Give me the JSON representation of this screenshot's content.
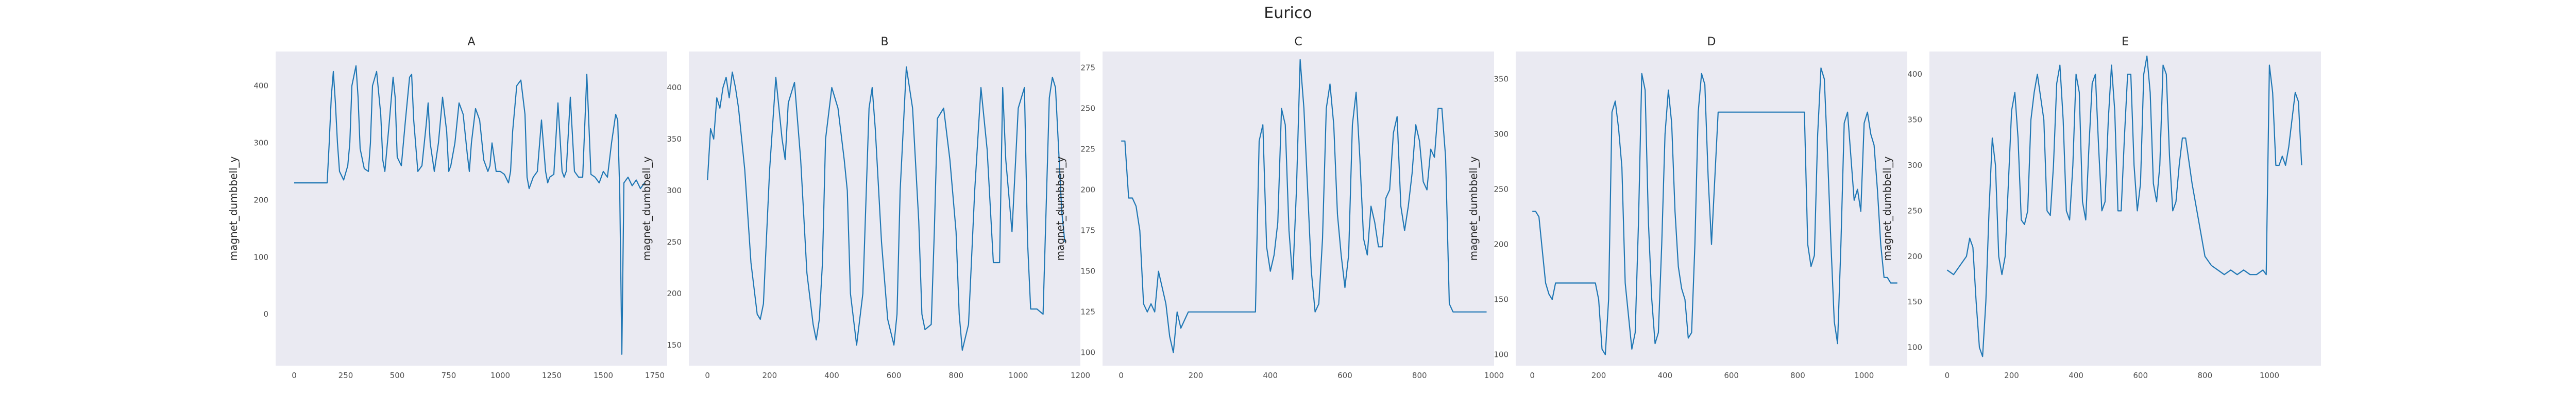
{
  "title": "Eurico",
  "chart_data": [
    {
      "type": "line",
      "title": "A",
      "ylabel": "magnet_dumbbell_y",
      "xlim": [
        -90,
        1810
      ],
      "ylim": [
        -90,
        460
      ],
      "xticks": [
        0,
        250,
        500,
        750,
        1000,
        1250,
        1500,
        1750
      ],
      "yticks": [
        0,
        100,
        200,
        300,
        400
      ],
      "grid": false,
      "series": [
        {
          "color": "#1f77b4",
          "x": [
            0,
            140,
            160,
            170,
            180,
            190,
            200,
            210,
            220,
            240,
            260,
            270,
            280,
            300,
            310,
            320,
            340,
            360,
            370,
            380,
            400,
            420,
            430,
            440,
            460,
            480,
            490,
            500,
            520,
            540,
            560,
            570,
            580,
            600,
            620,
            640,
            650,
            660,
            680,
            700,
            720,
            740,
            750,
            760,
            780,
            800,
            820,
            840,
            850,
            860,
            880,
            900,
            920,
            940,
            950,
            960,
            980,
            1000,
            1020,
            1040,
            1050,
            1060,
            1080,
            1100,
            1120,
            1130,
            1140,
            1160,
            1180,
            1200,
            1220,
            1230,
            1240,
            1260,
            1280,
            1300,
            1310,
            1320,
            1340,
            1360,
            1380,
            1400,
            1420,
            1440,
            1460,
            1480,
            1500,
            1520,
            1540,
            1560,
            1570,
            1580,
            1590,
            1600,
            1620,
            1640,
            1660,
            1680,
            1700
          ],
          "y": [
            230,
            230,
            230,
            300,
            380,
            425,
            370,
            300,
            250,
            235,
            260,
            300,
            400,
            435,
            380,
            290,
            255,
            250,
            300,
            400,
            425,
            350,
            270,
            250,
            330,
            415,
            380,
            275,
            260,
            340,
            415,
            420,
            340,
            250,
            260,
            330,
            370,
            300,
            250,
            300,
            380,
            320,
            250,
            260,
            300,
            370,
            350,
            280,
            250,
            300,
            360,
            340,
            270,
            250,
            260,
            300,
            250,
            250,
            245,
            230,
            250,
            320,
            400,
            410,
            350,
            240,
            220,
            240,
            250,
            340,
            250,
            230,
            240,
            245,
            370,
            250,
            240,
            250,
            380,
            250,
            240,
            240,
            420,
            245,
            240,
            230,
            250,
            240,
            300,
            350,
            340,
            210,
            -70,
            230,
            240,
            225,
            235,
            220,
            230
          ]
        }
      ]
    },
    {
      "type": "line",
      "title": "B",
      "ylabel": "magnet_dumbbell_y",
      "xlim": [
        -60,
        1200
      ],
      "ylim": [
        130,
        435
      ],
      "xticks": [
        0,
        200,
        400,
        600,
        800,
        1000,
        1200
      ],
      "yticks": [
        150,
        200,
        250,
        300,
        350,
        400
      ],
      "grid": false,
      "series": [
        {
          "color": "#1f77b4",
          "x": [
            0,
            10,
            20,
            30,
            40,
            50,
            60,
            70,
            80,
            90,
            100,
            120,
            140,
            160,
            170,
            180,
            200,
            220,
            240,
            250,
            260,
            280,
            300,
            320,
            340,
            350,
            360,
            370,
            380,
            400,
            420,
            440,
            450,
            460,
            480,
            500,
            520,
            530,
            540,
            560,
            580,
            600,
            610,
            620,
            640,
            660,
            680,
            690,
            700,
            720,
            730,
            740,
            760,
            780,
            800,
            810,
            820,
            840,
            860,
            880,
            900,
            920,
            940,
            950,
            960,
            980,
            1000,
            1020,
            1030,
            1040,
            1060,
            1080,
            1100,
            1110,
            1120,
            1130,
            1140,
            1150
          ],
          "y": [
            310,
            360,
            350,
            390,
            380,
            400,
            410,
            390,
            415,
            400,
            380,
            320,
            230,
            180,
            175,
            190,
            320,
            410,
            350,
            330,
            385,
            405,
            330,
            220,
            170,
            155,
            175,
            230,
            350,
            400,
            380,
            330,
            300,
            200,
            150,
            200,
            380,
            400,
            360,
            250,
            175,
            150,
            180,
            300,
            420,
            380,
            270,
            180,
            165,
            170,
            260,
            370,
            380,
            330,
            260,
            180,
            145,
            170,
            300,
            400,
            340,
            230,
            230,
            400,
            330,
            260,
            380,
            400,
            250,
            185,
            185,
            180,
            390,
            410,
            400,
            340,
            280,
            250
          ]
        }
      ]
    },
    {
      "type": "line",
      "title": "C",
      "ylabel": "magnet_dumbbell_y",
      "xlim": [
        -50,
        1000
      ],
      "ylim": [
        92,
        285
      ],
      "xticks": [
        0,
        200,
        400,
        600,
        800,
        1000
      ],
      "yticks": [
        100,
        125,
        150,
        175,
        200,
        225,
        250,
        275
      ],
      "grid": false,
      "series": [
        {
          "color": "#1f77b4",
          "x": [
            0,
            10,
            20,
            30,
            40,
            50,
            60,
            70,
            80,
            90,
            100,
            110,
            120,
            130,
            140,
            150,
            160,
            170,
            180,
            190,
            200,
            250,
            300,
            340,
            360,
            370,
            380,
            390,
            400,
            410,
            420,
            430,
            440,
            450,
            460,
            470,
            480,
            490,
            500,
            510,
            520,
            530,
            540,
            550,
            560,
            570,
            580,
            590,
            600,
            610,
            620,
            630,
            640,
            650,
            660,
            670,
            680,
            690,
            700,
            710,
            720,
            730,
            740,
            750,
            760,
            770,
            780,
            790,
            800,
            810,
            820,
            830,
            840,
            850,
            860,
            870,
            880,
            890,
            900,
            910,
            920,
            930,
            940,
            950,
            960,
            970,
            980
          ],
          "y": [
            230,
            230,
            195,
            195,
            190,
            175,
            130,
            125,
            130,
            125,
            150,
            140,
            130,
            110,
            100,
            125,
            115,
            120,
            125,
            125,
            125,
            125,
            125,
            125,
            125,
            230,
            240,
            165,
            150,
            160,
            180,
            250,
            240,
            175,
            145,
            200,
            280,
            250,
            200,
            150,
            125,
            130,
            170,
            250,
            265,
            240,
            185,
            160,
            140,
            160,
            240,
            260,
            220,
            170,
            160,
            190,
            180,
            165,
            165,
            195,
            200,
            235,
            245,
            190,
            175,
            190,
            210,
            240,
            230,
            205,
            200,
            225,
            220,
            250,
            250,
            220,
            130,
            125,
            125,
            125,
            125,
            125,
            125,
            125,
            125,
            125,
            125
          ]
        }
      ]
    },
    {
      "type": "line",
      "title": "D",
      "ylabel": "magnet_dumbbell_y",
      "xlim": [
        -50,
        1130
      ],
      "ylim": [
        90,
        375
      ],
      "xticks": [
        0,
        200,
        400,
        600,
        800,
        1000
      ],
      "yticks": [
        100,
        150,
        200,
        250,
        300,
        350
      ],
      "grid": false,
      "series": [
        {
          "color": "#1f77b4",
          "x": [
            0,
            10,
            20,
            30,
            40,
            50,
            60,
            70,
            80,
            100,
            150,
            190,
            200,
            210,
            220,
            230,
            240,
            250,
            260,
            270,
            280,
            300,
            310,
            320,
            330,
            340,
            350,
            360,
            370,
            380,
            390,
            400,
            410,
            420,
            430,
            440,
            450,
            460,
            470,
            480,
            490,
            500,
            510,
            520,
            530,
            540,
            560,
            600,
            700,
            800,
            820,
            830,
            840,
            850,
            860,
            870,
            880,
            890,
            900,
            910,
            920,
            930,
            940,
            950,
            960,
            970,
            980,
            990,
            1000,
            1010,
            1020,
            1030,
            1040,
            1050,
            1060,
            1070,
            1080,
            1090,
            1100
          ],
          "y": [
            230,
            230,
            225,
            195,
            165,
            155,
            150,
            165,
            165,
            165,
            165,
            165,
            150,
            105,
            100,
            150,
            320,
            330,
            305,
            270,
            165,
            105,
            120,
            220,
            355,
            340,
            220,
            150,
            110,
            120,
            200,
            300,
            340,
            310,
            230,
            180,
            160,
            150,
            115,
            120,
            200,
            320,
            355,
            345,
            260,
            200,
            320,
            320,
            320,
            320,
            320,
            200,
            180,
            190,
            300,
            360,
            350,
            280,
            200,
            130,
            110,
            200,
            310,
            320,
            280,
            240,
            250,
            230,
            310,
            320,
            300,
            290,
            250,
            200,
            170,
            170,
            165,
            165,
            165
          ]
        }
      ]
    },
    {
      "type": "line",
      "title": "E",
      "ylabel": "magnet_dumbbell_y",
      "xlim": [
        -55,
        1160
      ],
      "ylim": [
        80,
        425
      ],
      "xticks": [
        0,
        200,
        400,
        600,
        800,
        1000
      ],
      "yticks": [
        100,
        150,
        200,
        250,
        300,
        350,
        400
      ],
      "grid": false,
      "series": [
        {
          "color": "#1f77b4",
          "x": [
            0,
            20,
            40,
            60,
            70,
            80,
            90,
            100,
            110,
            120,
            130,
            140,
            150,
            160,
            170,
            180,
            200,
            210,
            220,
            230,
            240,
            250,
            260,
            270,
            280,
            300,
            310,
            320,
            330,
            340,
            350,
            360,
            370,
            380,
            390,
            400,
            410,
            420,
            430,
            440,
            450,
            460,
            470,
            480,
            490,
            500,
            510,
            520,
            530,
            540,
            550,
            560,
            570,
            580,
            590,
            600,
            610,
            620,
            630,
            640,
            650,
            660,
            670,
            680,
            690,
            700,
            710,
            720,
            730,
            740,
            760,
            780,
            800,
            820,
            840,
            860,
            880,
            900,
            920,
            940,
            960,
            980,
            990,
            1000,
            1010,
            1020,
            1030,
            1040,
            1050,
            1060,
            1070,
            1080,
            1090,
            1100
          ],
          "y": [
            185,
            180,
            190,
            200,
            220,
            210,
            150,
            100,
            90,
            150,
            250,
            330,
            300,
            200,
            180,
            200,
            360,
            380,
            330,
            240,
            235,
            250,
            350,
            380,
            400,
            350,
            250,
            245,
            300,
            390,
            410,
            350,
            250,
            240,
            300,
            400,
            380,
            260,
            240,
            320,
            390,
            400,
            320,
            250,
            260,
            350,
            410,
            360,
            250,
            250,
            330,
            400,
            400,
            300,
            250,
            280,
            400,
            420,
            380,
            280,
            260,
            300,
            410,
            400,
            310,
            250,
            260,
            300,
            330,
            330,
            280,
            240,
            200,
            190,
            185,
            180,
            185,
            180,
            185,
            180,
            180,
            185,
            180,
            410,
            380,
            300,
            300,
            310,
            300,
            320,
            350,
            380,
            370,
            300
          ]
        }
      ]
    }
  ]
}
